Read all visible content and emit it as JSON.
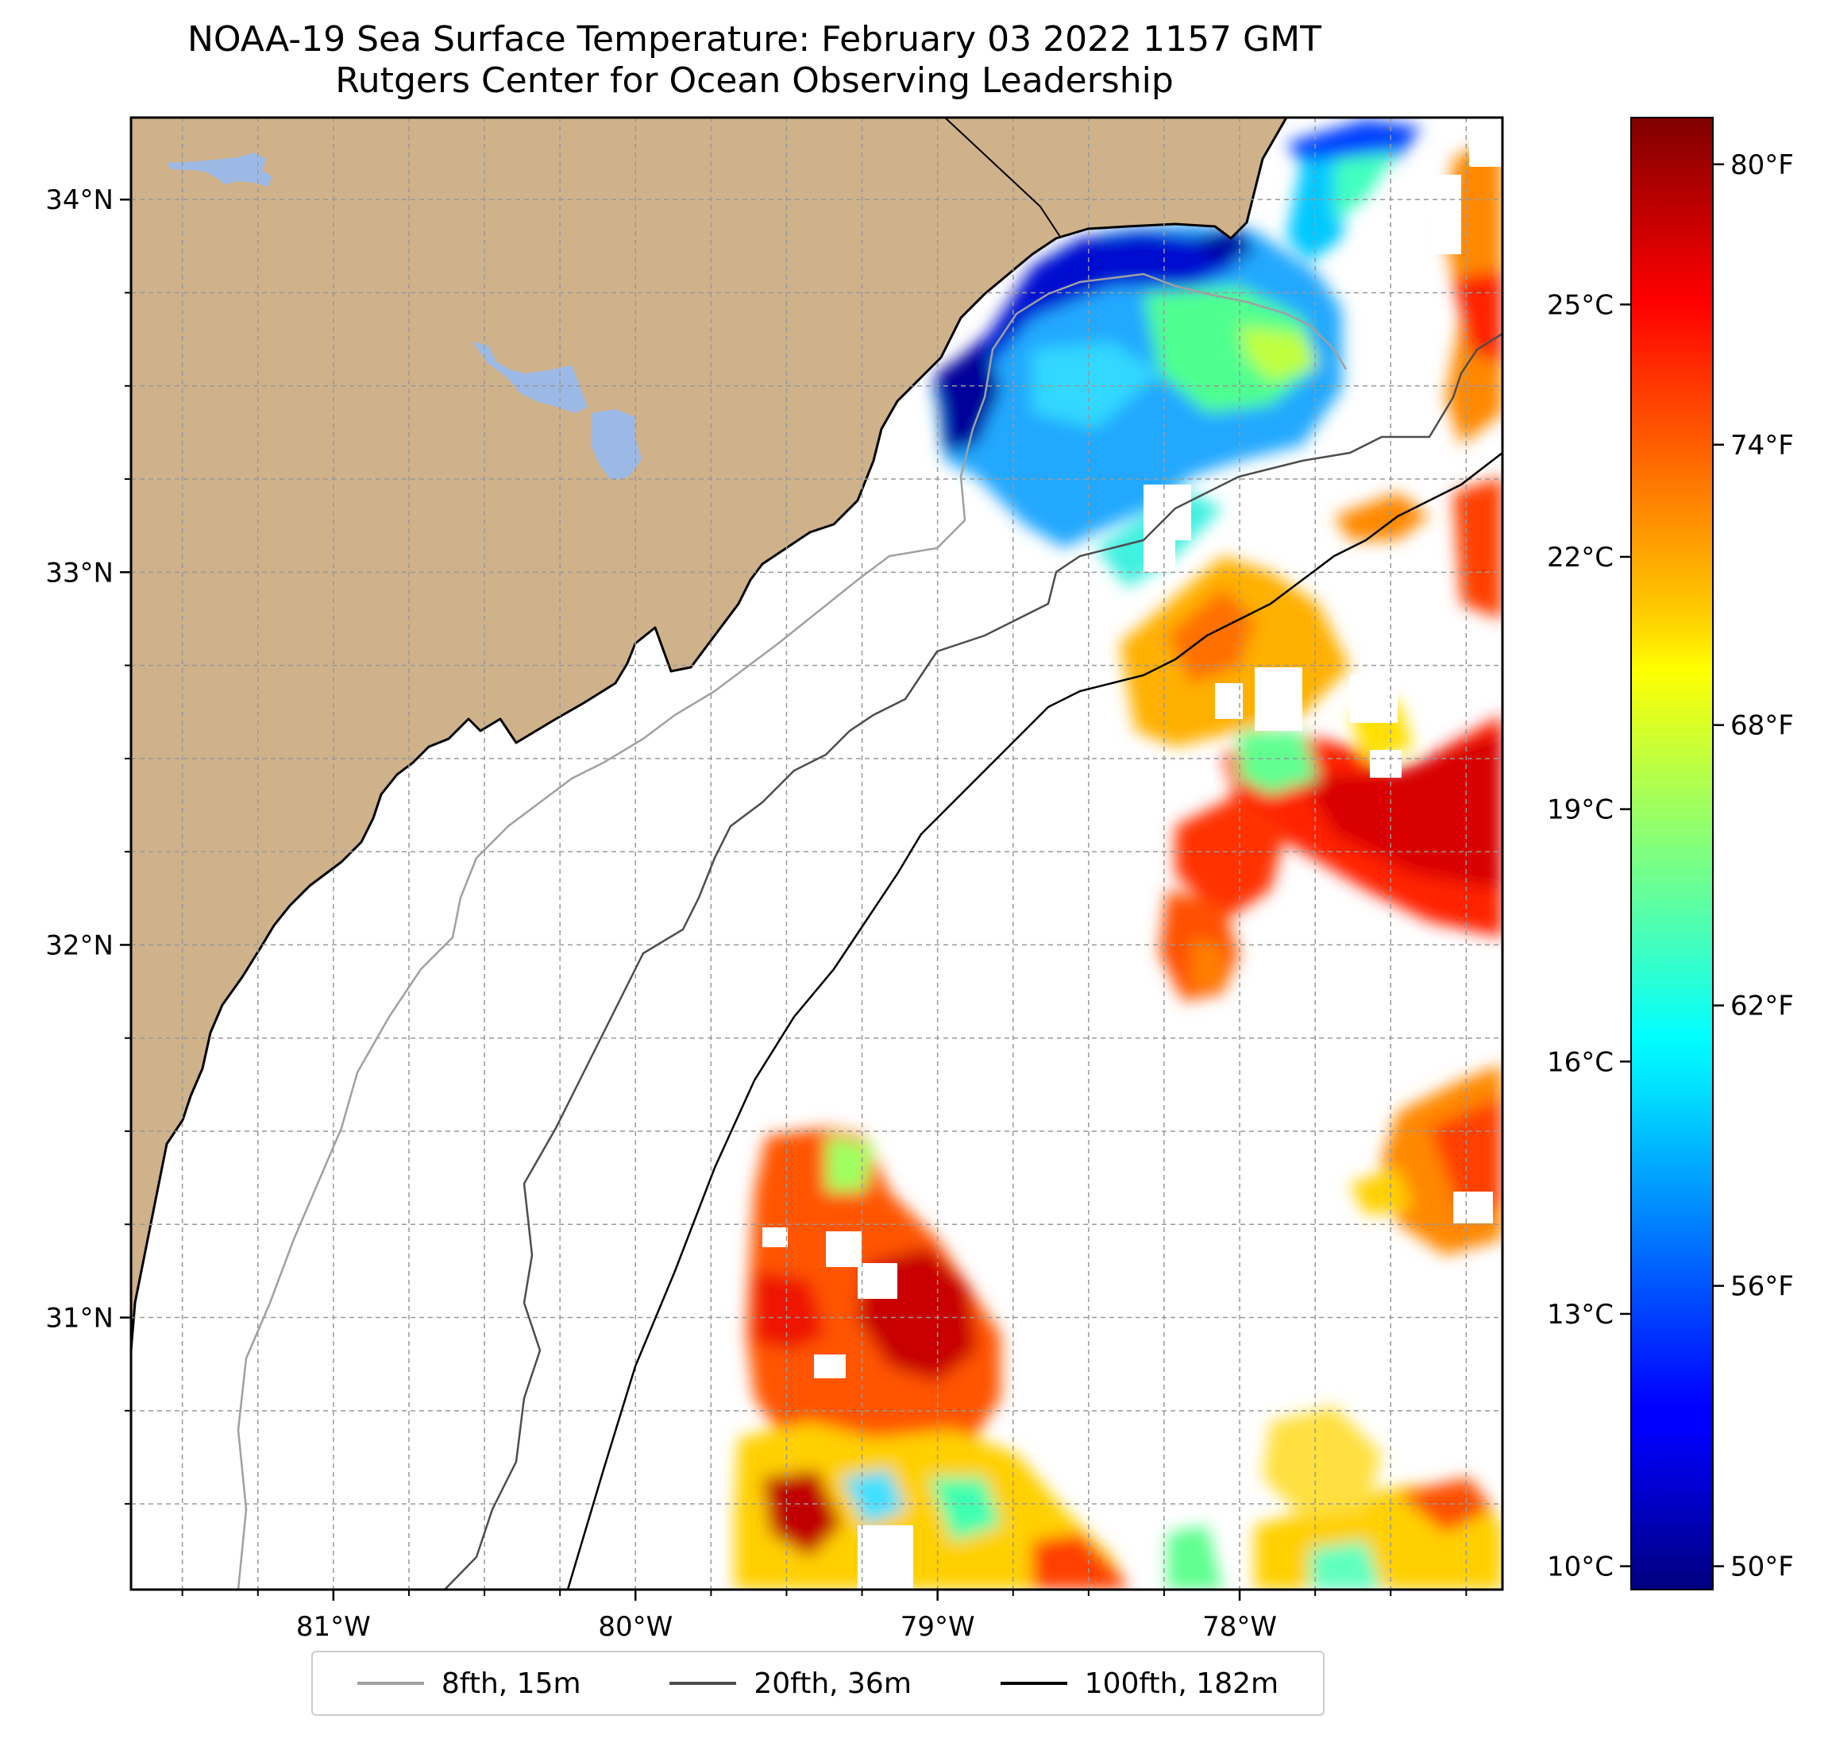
{
  "title": "NOAA-19 Sea Surface Temperature: February 03 2022 1157 GMT",
  "subtitle": "Rutgers Center for Ocean Observing Leadership",
  "map": {
    "lon_range": [
      -81.67,
      -77.13
    ],
    "lat_range": [
      30.27,
      34.22
    ],
    "lon_ticks": [
      {
        "value": -81,
        "label": "81°W"
      },
      {
        "value": -80,
        "label": "80°W"
      },
      {
        "value": -79,
        "label": "79°W"
      },
      {
        "value": -78,
        "label": "78°W"
      }
    ],
    "lat_ticks": [
      {
        "value": 34,
        "label": "34°N"
      },
      {
        "value": 33,
        "label": "33°N"
      },
      {
        "value": 32,
        "label": "32°N"
      },
      {
        "value": 31,
        "label": "31°N"
      }
    ],
    "gridlines": "on",
    "land_color": "#cfb28a",
    "lake_color": "#9cb9e6",
    "coastline_color": "#000000"
  },
  "colorbar": {
    "colormap": "jet",
    "range_f": [
      49.5,
      81
    ],
    "fahrenheit_ticks": [
      {
        "value": 80,
        "label": "80°F"
      },
      {
        "value": 74,
        "label": "74°F"
      },
      {
        "value": 68,
        "label": "68°F"
      },
      {
        "value": 62,
        "label": "62°F"
      },
      {
        "value": 56,
        "label": "56°F"
      },
      {
        "value": 50,
        "label": "50°F"
      }
    ],
    "celsius_ticks": [
      {
        "value": 25,
        "label": "25°C"
      },
      {
        "value": 22,
        "label": "22°C"
      },
      {
        "value": 19,
        "label": "19°C"
      },
      {
        "value": 16,
        "label": "16°C"
      },
      {
        "value": 13,
        "label": "13°C"
      },
      {
        "value": 10,
        "label": "10°C"
      }
    ]
  },
  "legend": [
    {
      "label": "8fth, 15m",
      "color": "#a0a0a0"
    },
    {
      "label": "20fth, 36m",
      "color": "#4d4d4d"
    },
    {
      "label": "100fth, 182m",
      "color": "#000000"
    }
  ]
}
